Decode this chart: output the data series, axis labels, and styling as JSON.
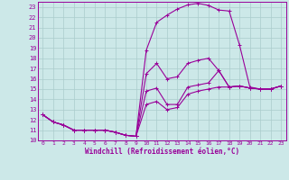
{
  "xlabel": "Windchill (Refroidissement éolien,°C)",
  "bg_color": "#cce8e8",
  "grid_color": "#aacccc",
  "line_color": "#990099",
  "xlim": [
    -0.5,
    23.5
  ],
  "ylim": [
    10,
    23.5
  ],
  "xticks": [
    0,
    1,
    2,
    3,
    4,
    5,
    6,
    7,
    8,
    9,
    10,
    11,
    12,
    13,
    14,
    15,
    16,
    17,
    18,
    19,
    20,
    21,
    22,
    23
  ],
  "yticks": [
    10,
    11,
    12,
    13,
    14,
    15,
    16,
    17,
    18,
    19,
    20,
    21,
    22,
    23
  ],
  "curves": [
    {
      "x": [
        0,
        1,
        2,
        3,
        4,
        5,
        6,
        7,
        8,
        9,
        10,
        11,
        12,
        13,
        14,
        15,
        16,
        17,
        18,
        19,
        20,
        21,
        22,
        23
      ],
      "y": [
        12.5,
        11.8,
        11.5,
        11.0,
        11.0,
        11.0,
        11.0,
        10.8,
        10.5,
        10.4,
        13.5,
        13.8,
        13.0,
        13.2,
        14.5,
        14.8,
        15.0,
        15.2,
        15.2,
        15.3,
        15.1,
        15.0,
        15.0,
        15.3
      ]
    },
    {
      "x": [
        0,
        1,
        2,
        3,
        4,
        5,
        6,
        7,
        8,
        9,
        10,
        11,
        12,
        13,
        14,
        15,
        16,
        17,
        18,
        19,
        20,
        21,
        22,
        23
      ],
      "y": [
        12.5,
        11.8,
        11.5,
        11.0,
        11.0,
        11.0,
        11.0,
        10.8,
        10.5,
        10.4,
        14.8,
        15.1,
        13.5,
        13.5,
        15.2,
        15.4,
        15.6,
        16.8,
        15.2,
        15.3,
        15.1,
        15.0,
        15.0,
        15.3
      ]
    },
    {
      "x": [
        0,
        1,
        2,
        3,
        4,
        5,
        6,
        7,
        8,
        9,
        10,
        11,
        12,
        13,
        14,
        15,
        16,
        17,
        18,
        19,
        20,
        21,
        22,
        23
      ],
      "y": [
        12.5,
        11.8,
        11.5,
        11.0,
        11.0,
        11.0,
        11.0,
        10.8,
        10.5,
        10.4,
        16.5,
        17.5,
        16.0,
        16.2,
        17.5,
        17.8,
        18.0,
        16.8,
        15.2,
        15.3,
        15.1,
        15.0,
        15.0,
        15.3
      ]
    },
    {
      "x": [
        0,
        1,
        2,
        3,
        4,
        5,
        6,
        7,
        8,
        9,
        10,
        11,
        12,
        13,
        14,
        15,
        16,
        17,
        18,
        19,
        20,
        21,
        22,
        23
      ],
      "y": [
        12.5,
        11.8,
        11.5,
        11.0,
        11.0,
        11.0,
        11.0,
        10.8,
        10.5,
        10.4,
        18.8,
        21.5,
        22.2,
        22.8,
        23.2,
        23.35,
        23.15,
        22.7,
        22.6,
        19.3,
        15.2,
        15.0,
        15.0,
        15.3
      ]
    }
  ]
}
